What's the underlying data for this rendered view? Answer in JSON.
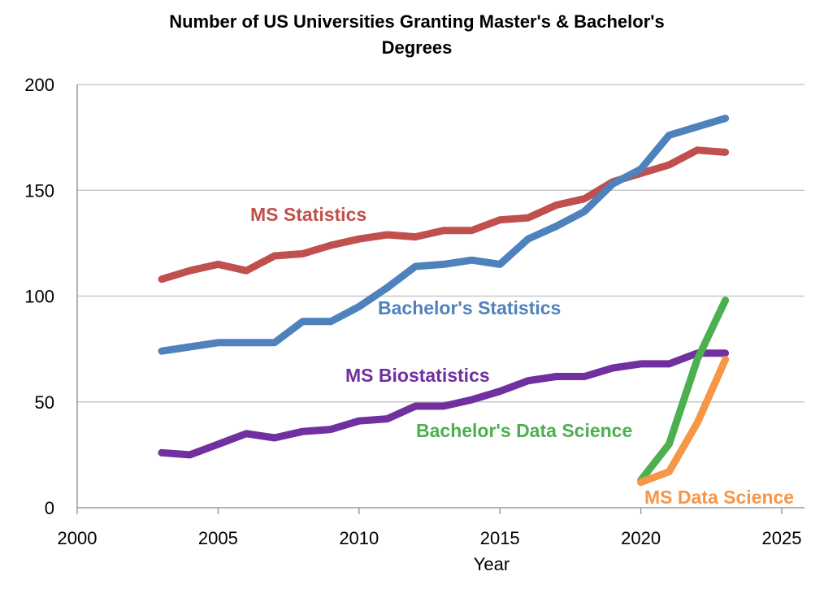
{
  "chart_data": {
    "type": "line",
    "title_lines": [
      "Number of US Universities Granting Master's & Bachelor's",
      "Degrees"
    ],
    "xlabel": "Year",
    "ylabel": "",
    "xlim": [
      2000,
      2025
    ],
    "ylim": [
      0,
      200
    ],
    "xticks": [
      2000,
      2005,
      2010,
      2015,
      2020,
      2025
    ],
    "yticks": [
      0,
      50,
      100,
      150,
      200
    ],
    "grid": "horizontal",
    "series": [
      {
        "name": "MS Statistics",
        "color": "#c0504d",
        "x": [
          2003,
          2004,
          2005,
          2006,
          2007,
          2008,
          2009,
          2010,
          2011,
          2012,
          2013,
          2014,
          2015,
          2016,
          2017,
          2018,
          2019,
          2020,
          2021,
          2022,
          2023
        ],
        "values": [
          108,
          112,
          115,
          112,
          119,
          120,
          124,
          127,
          129,
          128,
          131,
          131,
          136,
          137,
          143,
          146,
          154,
          158,
          162,
          169,
          168
        ]
      },
      {
        "name": "Bachelor's Statistics",
        "color": "#4f81bd",
        "x": [
          2003,
          2004,
          2005,
          2006,
          2007,
          2008,
          2009,
          2010,
          2011,
          2012,
          2013,
          2014,
          2015,
          2016,
          2017,
          2018,
          2019,
          2020,
          2021,
          2022,
          2023
        ],
        "values": [
          74,
          76,
          78,
          78,
          78,
          88,
          88,
          95,
          104,
          114,
          115,
          117,
          115,
          127,
          133,
          140,
          153,
          160,
          176,
          180,
          184
        ]
      },
      {
        "name": "MS Biostatistics",
        "color": "#7030a0",
        "x": [
          2003,
          2004,
          2005,
          2006,
          2007,
          2008,
          2009,
          2010,
          2011,
          2012,
          2013,
          2014,
          2015,
          2016,
          2017,
          2018,
          2019,
          2020,
          2021,
          2022,
          2023
        ],
        "values": [
          26,
          25,
          30,
          35,
          33,
          36,
          37,
          41,
          42,
          48,
          48,
          51,
          55,
          60,
          62,
          62,
          66,
          68,
          68,
          73,
          73
        ]
      },
      {
        "name": "Bachelor's Data Science",
        "color": "#4caf50",
        "x": [
          2020,
          2021,
          2022,
          2023
        ],
        "values": [
          13,
          30,
          70,
          98
        ]
      },
      {
        "name": "MS Data Science",
        "color": "#f79646",
        "x": [
          2020,
          2021,
          2022,
          2023
        ],
        "values": [
          12,
          17,
          40,
          70
        ]
      }
    ]
  }
}
